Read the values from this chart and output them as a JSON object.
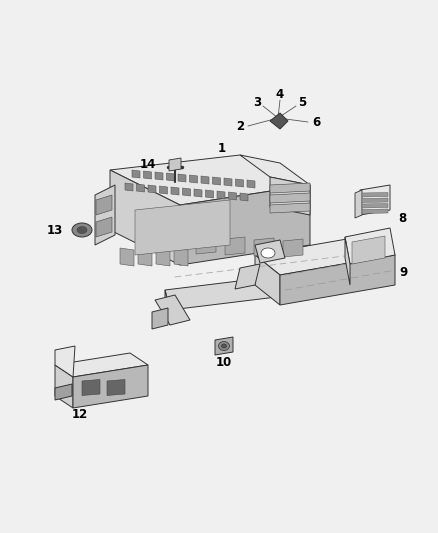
{
  "background_color": "#f0f0f0",
  "fig_width": 4.38,
  "fig_height": 5.33,
  "dpi": 100,
  "label_fontsize": 8.5,
  "label_fontweight": "bold",
  "label_color": "#000000",
  "edge_color": "#333333",
  "face_light": "#e8e8e8",
  "face_mid": "#d0d0d0",
  "face_dark": "#b8b8b8",
  "face_darker": "#a0a0a0",
  "lw_main": 0.7,
  "lw_thin": 0.5
}
